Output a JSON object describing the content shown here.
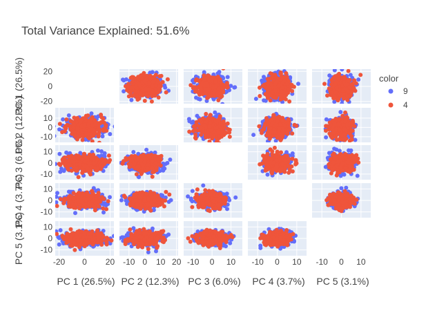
{
  "chart_data": {
    "type": "scatter",
    "subtype": "scatter-matrix",
    "title": "Total Variance Explained: 51.6%",
    "dimensions": [
      {
        "label": "PC 1 (26.5%)",
        "range": [
          -23,
          23
        ],
        "ticks": [
          -20,
          0,
          20
        ],
        "sd": 7.0
      },
      {
        "label": "PC 2 (12.3%)",
        "range": [
          -16,
          21
        ],
        "ticks": [
          -10,
          0,
          10,
          20
        ],
        "sd": 4.8
      },
      {
        "label": "PC 3 (6.0%)",
        "range": [
          -15,
          16
        ],
        "ticks": [
          -10,
          0,
          10
        ],
        "sd": 3.6
      },
      {
        "label": "PC 4 (3.7%)",
        "range": [
          -15,
          15
        ],
        "ticks": [
          -10,
          0,
          10
        ],
        "sd": 3.0
      },
      {
        "label": "PC 5 (3.1%)",
        "range": [
          -15,
          15
        ],
        "ticks": [
          -10,
          0,
          10
        ],
        "sd": 2.7
      }
    ],
    "y_axis_ticks": [
      [
        -20,
        0,
        20
      ],
      [
        -10,
        0,
        10
      ],
      [
        -10,
        0,
        10
      ],
      [
        -10,
        0,
        10
      ],
      [
        -10,
        0,
        10
      ]
    ],
    "diagonal_visible": false,
    "legend": {
      "title": "color",
      "position": "right",
      "items": [
        {
          "name": "9",
          "color": "#636efa"
        },
        {
          "name": "4",
          "color": "#ef553b"
        }
      ]
    },
    "series": [
      {
        "name": "9",
        "color": "#636efa",
        "points_per_panel": 260
      },
      {
        "name": "4",
        "color": "#ef553b",
        "points_per_panel": 320
      }
    ],
    "grid": true
  }
}
